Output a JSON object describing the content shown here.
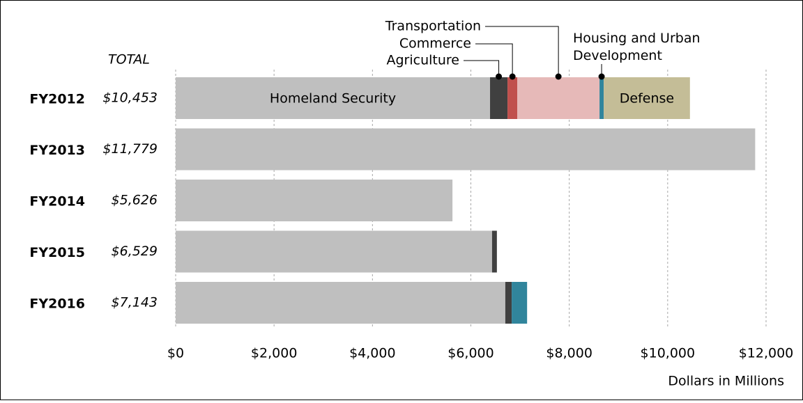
{
  "chart_data": {
    "type": "stacked_bar_horizontal",
    "categories": [
      "FY2012",
      "FY2013",
      "FY2014",
      "FY2015",
      "FY2016"
    ],
    "totals_header": "TOTAL",
    "totals": [
      10453,
      11779,
      5626,
      6529,
      7143
    ],
    "totals_value_labels": [
      "$10,453",
      "$11,779",
      "$5,626",
      "$6,529",
      "$7,143"
    ],
    "series": [
      {
        "name": "Homeland Security",
        "color": "#bfbfbf",
        "values": [
          6390,
          11779,
          5626,
          6431,
          6700
        ]
      },
      {
        "name": "Agriculture",
        "color": "#404040",
        "values": [
          355,
          null,
          null,
          98,
          130
        ]
      },
      {
        "name": "Commerce",
        "color": "#c0504d",
        "values": [
          200,
          null,
          null,
          null,
          null
        ]
      },
      {
        "name": "Transportation",
        "color": "#e6b9b8",
        "values": [
          1670,
          null,
          null,
          null,
          null
        ]
      },
      {
        "name": "Housing and Urban Development",
        "color": "#31859c",
        "values": [
          85,
          null,
          null,
          null,
          313
        ]
      },
      {
        "name": "Defense",
        "color": "#c4bd97",
        "values": [
          1753,
          null,
          null,
          null,
          null
        ]
      }
    ],
    "xlim": [
      0,
      12000
    ],
    "xticks": [
      {
        "value": 0,
        "label": "$0"
      },
      {
        "value": 2000,
        "label": "$2,000"
      },
      {
        "value": 4000,
        "label": "$4,000"
      },
      {
        "value": 6000,
        "label": "$6,000"
      },
      {
        "value": 8000,
        "label": "$8,000"
      },
      {
        "value": 10000,
        "label": "$10,000"
      },
      {
        "value": 12000,
        "label": "$12,000"
      }
    ],
    "xlabel": "Dollars in Millions",
    "grid": true
  }
}
